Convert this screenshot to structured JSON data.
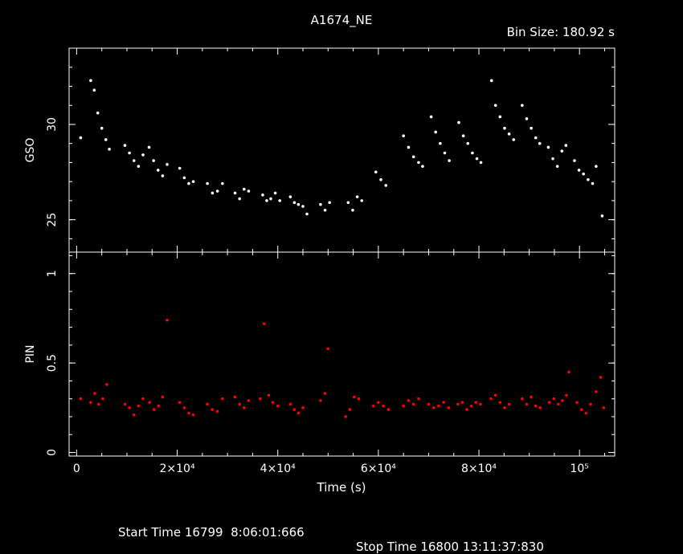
{
  "chart_data": {
    "title": "A1674_NE",
    "bin_size": "Bin Size: 180.92 s",
    "xlabel": "Time (s)",
    "x_ticks": [
      "0",
      "2×10⁴",
      "4×10⁴",
      "6×10⁴",
      "8×10⁴",
      "10⁵"
    ],
    "xlim": [
      -1500,
      107000
    ],
    "panels": [
      {
        "name": "GSO",
        "ylabel": "GSO",
        "type": "scatter",
        "ylim": [
          23.3,
          34.0
        ],
        "y_ticks": [
          25,
          30
        ],
        "color": "#ffffff",
        "points": [
          [
            800,
            29.3
          ],
          [
            2800,
            32.3
          ],
          [
            3500,
            31.8
          ],
          [
            4200,
            30.6
          ],
          [
            5000,
            29.8
          ],
          [
            5800,
            29.2
          ],
          [
            6500,
            28.7
          ],
          [
            9600,
            28.9
          ],
          [
            10500,
            28.5
          ],
          [
            11400,
            28.1
          ],
          [
            12300,
            27.8
          ],
          [
            13200,
            28.4
          ],
          [
            14400,
            28.8
          ],
          [
            15300,
            28.1
          ],
          [
            16200,
            27.6
          ],
          [
            17100,
            27.3
          ],
          [
            18000,
            27.9
          ],
          [
            20500,
            27.7
          ],
          [
            21400,
            27.2
          ],
          [
            22300,
            26.9
          ],
          [
            23200,
            27.0
          ],
          [
            26000,
            26.9
          ],
          [
            27000,
            26.4
          ],
          [
            28000,
            26.5
          ],
          [
            29000,
            26.9
          ],
          [
            31500,
            26.4
          ],
          [
            32400,
            26.1
          ],
          [
            33300,
            26.6
          ],
          [
            34200,
            26.5
          ],
          [
            37000,
            26.3
          ],
          [
            37800,
            26.0
          ],
          [
            38600,
            26.1
          ],
          [
            39500,
            26.4
          ],
          [
            40400,
            26.0
          ],
          [
            42500,
            26.2
          ],
          [
            43300,
            25.9
          ],
          [
            44100,
            25.8
          ],
          [
            45000,
            25.7
          ],
          [
            45800,
            25.3
          ],
          [
            48500,
            25.8
          ],
          [
            49400,
            25.5
          ],
          [
            50300,
            25.9
          ],
          [
            54000,
            25.9
          ],
          [
            54900,
            25.5
          ],
          [
            55800,
            26.2
          ],
          [
            56700,
            26.0
          ],
          [
            59500,
            27.5
          ],
          [
            60500,
            27.1
          ],
          [
            61500,
            26.8
          ],
          [
            65000,
            29.4
          ],
          [
            66000,
            28.8
          ],
          [
            67000,
            28.3
          ],
          [
            68000,
            28.0
          ],
          [
            68800,
            27.8
          ],
          [
            70500,
            30.4
          ],
          [
            71400,
            29.6
          ],
          [
            72300,
            29.0
          ],
          [
            73200,
            28.5
          ],
          [
            74100,
            28.1
          ],
          [
            76000,
            30.1
          ],
          [
            76900,
            29.4
          ],
          [
            77800,
            29.0
          ],
          [
            78700,
            28.5
          ],
          [
            79600,
            28.2
          ],
          [
            80400,
            28.0
          ],
          [
            82500,
            32.3
          ],
          [
            83300,
            31.0
          ],
          [
            84200,
            30.4
          ],
          [
            85100,
            29.8
          ],
          [
            86000,
            29.5
          ],
          [
            86900,
            29.2
          ],
          [
            88600,
            31.0
          ],
          [
            89500,
            30.3
          ],
          [
            90400,
            29.8
          ],
          [
            91300,
            29.3
          ],
          [
            92100,
            29.0
          ],
          [
            93800,
            28.8
          ],
          [
            94700,
            28.2
          ],
          [
            95600,
            27.8
          ],
          [
            96500,
            28.6
          ],
          [
            97300,
            28.9
          ],
          [
            99000,
            28.1
          ],
          [
            99900,
            27.6
          ],
          [
            100800,
            27.4
          ],
          [
            101700,
            27.1
          ],
          [
            102600,
            26.9
          ],
          [
            103300,
            27.8
          ],
          [
            104500,
            25.2
          ]
        ]
      },
      {
        "name": "PIN",
        "ylabel": "PIN",
        "type": "scatter",
        "ylim": [
          -0.02,
          1.12
        ],
        "y_ticks": [
          0,
          0.5,
          1
        ],
        "color": "#ff0000",
        "points": [
          [
            800,
            0.3
          ],
          [
            2800,
            0.28
          ],
          [
            3600,
            0.33
          ],
          [
            4400,
            0.27
          ],
          [
            5200,
            0.3
          ],
          [
            6000,
            0.38
          ],
          [
            9600,
            0.27
          ],
          [
            10500,
            0.25
          ],
          [
            11400,
            0.21
          ],
          [
            12300,
            0.26
          ],
          [
            13200,
            0.3
          ],
          [
            14500,
            0.28
          ],
          [
            15400,
            0.24
          ],
          [
            16300,
            0.26
          ],
          [
            17100,
            0.31
          ],
          [
            18000,
            0.74
          ],
          [
            20500,
            0.28
          ],
          [
            21400,
            0.25
          ],
          [
            22300,
            0.22
          ],
          [
            23200,
            0.21
          ],
          [
            26000,
            0.27
          ],
          [
            27000,
            0.24
          ],
          [
            28000,
            0.23
          ],
          [
            29000,
            0.3
          ],
          [
            31500,
            0.31
          ],
          [
            32400,
            0.27
          ],
          [
            33300,
            0.25
          ],
          [
            34200,
            0.29
          ],
          [
            36500,
            0.3
          ],
          [
            37300,
            0.72
          ],
          [
            38200,
            0.32
          ],
          [
            39000,
            0.28
          ],
          [
            40000,
            0.26
          ],
          [
            42500,
            0.27
          ],
          [
            43300,
            0.24
          ],
          [
            44100,
            0.22
          ],
          [
            45000,
            0.25
          ],
          [
            48500,
            0.29
          ],
          [
            49400,
            0.33
          ],
          [
            50000,
            0.58
          ],
          [
            53500,
            0.2
          ],
          [
            54300,
            0.24
          ],
          [
            55200,
            0.31
          ],
          [
            56100,
            0.3
          ],
          [
            59000,
            0.26
          ],
          [
            60000,
            0.28
          ],
          [
            61000,
            0.26
          ],
          [
            62000,
            0.24
          ],
          [
            65000,
            0.26
          ],
          [
            66000,
            0.29
          ],
          [
            67000,
            0.27
          ],
          [
            68000,
            0.3
          ],
          [
            70000,
            0.27
          ],
          [
            71000,
            0.25
          ],
          [
            72000,
            0.26
          ],
          [
            73000,
            0.28
          ],
          [
            74000,
            0.25
          ],
          [
            75800,
            0.27
          ],
          [
            76700,
            0.28
          ],
          [
            77600,
            0.24
          ],
          [
            78500,
            0.26
          ],
          [
            79400,
            0.28
          ],
          [
            80300,
            0.27
          ],
          [
            82400,
            0.3
          ],
          [
            83300,
            0.32
          ],
          [
            84200,
            0.28
          ],
          [
            85100,
            0.25
          ],
          [
            86000,
            0.27
          ],
          [
            88600,
            0.3
          ],
          [
            89500,
            0.27
          ],
          [
            90400,
            0.31
          ],
          [
            91300,
            0.26
          ],
          [
            92200,
            0.25
          ],
          [
            94000,
            0.28
          ],
          [
            94900,
            0.3
          ],
          [
            95800,
            0.27
          ],
          [
            96600,
            0.29
          ],
          [
            97400,
            0.32
          ],
          [
            97900,
            0.45
          ],
          [
            99500,
            0.28
          ],
          [
            100400,
            0.24
          ],
          [
            101300,
            0.22
          ],
          [
            102200,
            0.27
          ],
          [
            103300,
            0.34
          ],
          [
            104200,
            0.42
          ],
          [
            104800,
            0.25
          ]
        ]
      }
    ]
  },
  "footer": {
    "start_label": "Start Time 16799  8:06:01:666",
    "stop_label": "Stop Time 16800 13:11:37:830"
  }
}
